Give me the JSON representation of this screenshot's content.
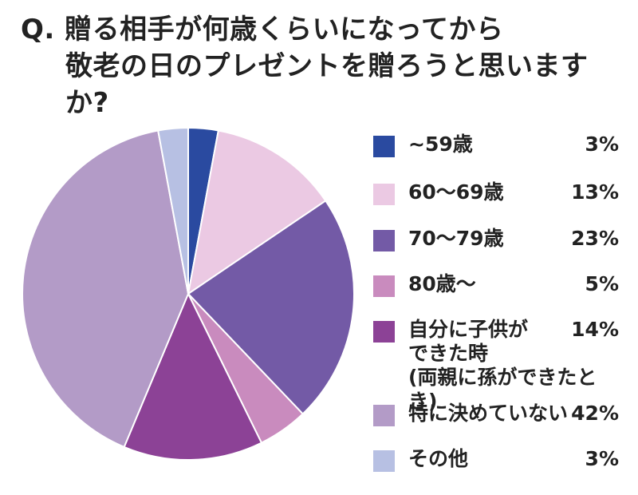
{
  "title": {
    "line1": "Q. 贈る相手が何歳くらいになってから",
    "line2": "敬老の日のプレゼントを贈ろうと思いますか?"
  },
  "chart_data": {
    "type": "pie",
    "start_angle_deg": 0,
    "direction": "clockwise",
    "slices": [
      {
        "label": "~59歳",
        "value": 3,
        "value_label": "3%",
        "color": "#2a4aa0"
      },
      {
        "label": "60〜69歳",
        "value": 13,
        "value_label": "13%",
        "color": "#ebc9e3"
      },
      {
        "label": "70〜79歳",
        "value": 23,
        "value_label": "23%",
        "color": "#735aa6"
      },
      {
        "label": "80歳〜",
        "value": 5,
        "value_label": "5%",
        "color": "#c98bbe"
      },
      {
        "label": "自分に子供が\nできた時\n(両親に孫ができたとき)",
        "value": 14,
        "value_label": "14%",
        "color": "#8c4296"
      },
      {
        "label": "特に決めていない",
        "value": 42,
        "value_label": "42%",
        "color": "#b39bc7"
      },
      {
        "label": "その他",
        "value": 3,
        "value_label": "3%",
        "color": "#b7c0e3"
      }
    ]
  }
}
